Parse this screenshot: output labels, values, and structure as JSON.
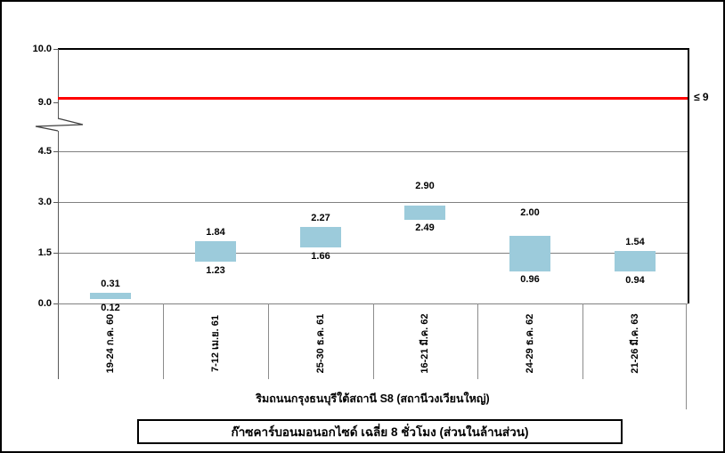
{
  "chart_data": {
    "type": "bar",
    "subtype": "floating-range-bars",
    "title": "ก๊าซคาร์บอนมอนอกไซด์ เฉลี่ย 8 ชั่วโมง (ส่วนในล้านส่วน)",
    "xlabel": "ริมถนนกรุงธนบุรีใต้สถานี S8 (สถานีวงเวียนใหญ่)",
    "categories": [
      "19-24 ก.ค. 60",
      "7-12 เม.ย. 61",
      "25-30 ธ.ค. 61",
      "16-21 มี.ค. 62",
      "24-29 ธ.ค. 62",
      "21-26 มี.ค. 63"
    ],
    "series": [
      {
        "name": "min",
        "values": [
          0.12,
          1.23,
          1.66,
          2.49,
          0.96,
          0.94
        ]
      },
      {
        "name": "max",
        "values": [
          0.31,
          1.84,
          2.27,
          2.9,
          2.0,
          1.54
        ]
      }
    ],
    "bar_color": "#9ccbdb",
    "threshold": {
      "value": 9,
      "label": "≤ 9",
      "color": "#ff0000"
    },
    "y_ticks_lower": [
      "0.0",
      "1.5",
      "3.0",
      "4.5"
    ],
    "y_ticks_upper": [
      "9.0",
      "10.0"
    ],
    "axis_break": true,
    "ylim": [
      0,
      10
    ],
    "grid": "horizontal",
    "legend": "none"
  }
}
